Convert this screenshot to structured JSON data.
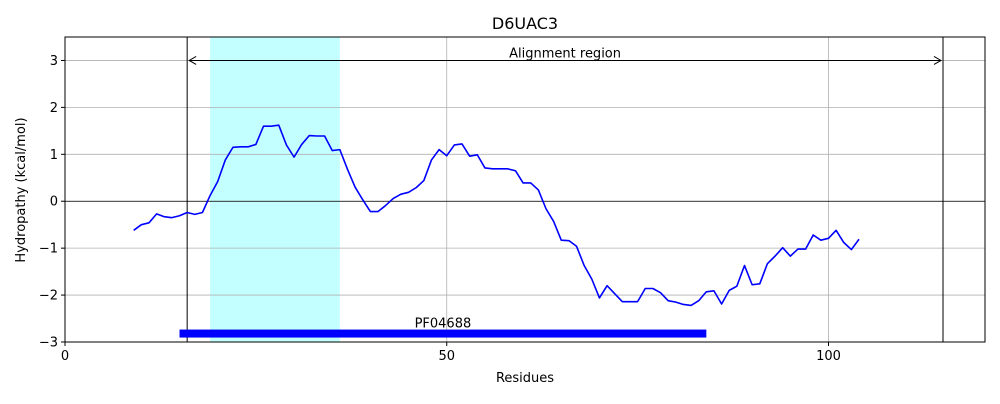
{
  "chart_data": {
    "type": "line",
    "title": "D6UAC3",
    "xlabel": "Residues",
    "ylabel": "Hydropathy (kcal/mol)",
    "xlim": [
      0,
      120.5
    ],
    "ylim": [
      -3,
      3.5
    ],
    "xticks": [
      0,
      50,
      100
    ],
    "yticks": [
      -3,
      -2,
      -1,
      0,
      1,
      2,
      3
    ],
    "grid": true,
    "series": [
      {
        "color": "#0000ff",
        "x": [
          9,
          10,
          11,
          12,
          13,
          14,
          15,
          16,
          17,
          18,
          19,
          20,
          21,
          22,
          23,
          24,
          25,
          26,
          27,
          28,
          29,
          30,
          31,
          32,
          33,
          34,
          35,
          36,
          37,
          38,
          39,
          40,
          41,
          42,
          43,
          44,
          45,
          46,
          47,
          48,
          49,
          50,
          51,
          52,
          53,
          54,
          55,
          56,
          57,
          58,
          59,
          60,
          61,
          62,
          63,
          64,
          65,
          66,
          67,
          68,
          69,
          70,
          71,
          72,
          73,
          74,
          75,
          76,
          77,
          78,
          79,
          80,
          81,
          82,
          83,
          84,
          85,
          86,
          87,
          88,
          89,
          90,
          91,
          92,
          93,
          94,
          95,
          96,
          97,
          98,
          99,
          100,
          101,
          102,
          103,
          104
        ],
        "y": [
          -0.62,
          -0.5,
          -0.46,
          -0.27,
          -0.33,
          -0.35,
          -0.31,
          -0.24,
          -0.28,
          -0.24,
          0.12,
          0.42,
          0.88,
          1.15,
          1.16,
          1.16,
          1.21,
          1.6,
          1.6,
          1.62,
          1.2,
          0.94,
          1.21,
          1.4,
          1.39,
          1.39,
          1.08,
          1.1,
          0.68,
          0.3,
          0.03,
          -0.22,
          -0.22,
          -0.09,
          0.06,
          0.15,
          0.19,
          0.29,
          0.44,
          0.88,
          1.1,
          0.97,
          1.2,
          1.22,
          0.96,
          0.99,
          0.71,
          0.69,
          0.69,
          0.69,
          0.65,
          0.39,
          0.39,
          0.24,
          -0.16,
          -0.43,
          -0.83,
          -0.84,
          -0.96,
          -1.37,
          -1.66,
          -2.06,
          -1.8,
          -1.97,
          -2.14,
          -2.14,
          -2.14,
          -1.86,
          -1.86,
          -1.95,
          -2.12,
          -2.15,
          -2.2,
          -2.22,
          -2.12,
          -1.93,
          -1.91,
          -2.19,
          -1.9,
          -1.81,
          -1.37,
          -1.78,
          -1.76,
          -1.33,
          -1.17,
          -0.99,
          -1.17,
          -1.02,
          -1.02,
          -0.72,
          -0.83,
          -0.79,
          -0.62,
          -0.88,
          -1.03,
          -0.81
        ]
      }
    ],
    "highlight_region": {
      "x_start": 19,
      "x_end": 36,
      "color": "#c4ffff"
    },
    "vertical_lines": [
      16,
      115
    ],
    "zero_line": 0,
    "annotation": {
      "label": "Alignment region",
      "x_start": 16,
      "x_end": 115,
      "y": 3
    },
    "domain_bar": {
      "label": "PF04688",
      "x_start": 15,
      "x_end": 84,
      "y": -2.82,
      "color": "#0000ff"
    }
  }
}
